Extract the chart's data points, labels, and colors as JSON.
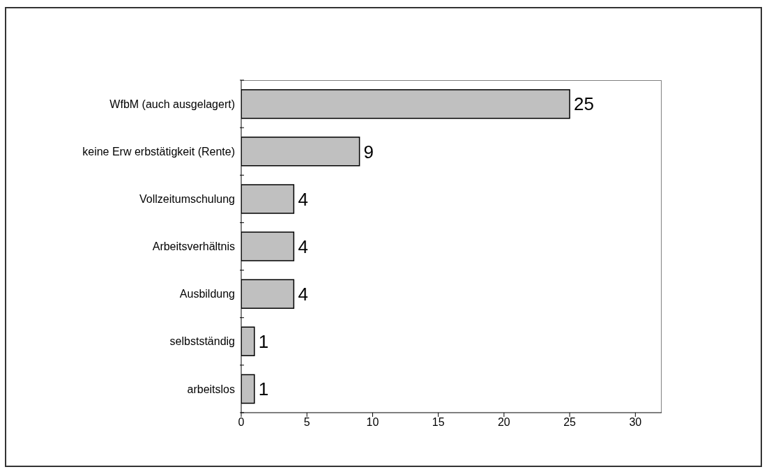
{
  "chart_data": {
    "type": "bar",
    "orientation": "horizontal",
    "categories": [
      "WfbM (auch ausgelagert)",
      "keine Erw erbstätigkeit (Rente)",
      "Vollzeitumschulung",
      "Arbeitsverhältnis",
      "Ausbildung",
      "selbstständig",
      "arbeitslos"
    ],
    "values": [
      25,
      9,
      4,
      4,
      4,
      1,
      1
    ],
    "color": "#c0c0c0",
    "xlim": [
      0,
      32
    ],
    "xticks": [
      0,
      5,
      10,
      15,
      20,
      25,
      30
    ],
    "data_labels": true
  }
}
